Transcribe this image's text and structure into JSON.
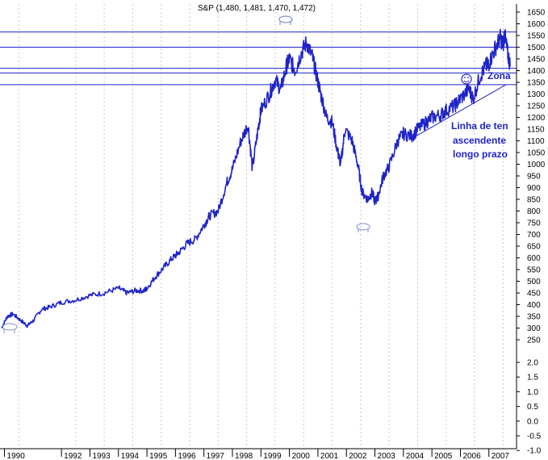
{
  "chart_data": {
    "type": "line",
    "title": "S&P (1,480, 1,481, 1,470, 1,472)",
    "y_ticks_upper": [
      "1650",
      "1600",
      "1550",
      "1500",
      "1450",
      "1400",
      "1350",
      "1300",
      "1250",
      "1200",
      "1150",
      "1100",
      "1050",
      "1000",
      "950",
      "900",
      "850",
      "800",
      "750",
      "700",
      "650",
      "600",
      "550",
      "500",
      "450",
      "400",
      "350",
      "300",
      "250"
    ],
    "y_ticks_lower": [
      "2.0",
      "1.5",
      "1.0",
      "0.5",
      "0.0",
      "-0.5",
      "-1.0"
    ],
    "x_ticks": [
      "1990",
      "1992",
      "1993",
      "1994",
      "1995",
      "1996",
      "1997",
      "1998",
      "1999",
      "2000",
      "2001",
      "2002",
      "2003",
      "2004",
      "2005",
      "2006",
      "2007"
    ],
    "x_tick_years": [
      1990,
      1992,
      1993,
      1994,
      1995,
      1996,
      1997,
      1998,
      1999,
      2000,
      2001,
      2002,
      2003,
      2004,
      2005,
      2006,
      2007
    ],
    "xlim": [
      1989.9,
      2007.8
    ],
    "ylim": [
      240,
      1660
    ],
    "series": [
      {
        "color": "#1f24c8",
        "x": [
          1989.9,
          1990.1,
          1990.3,
          1990.6,
          1990.8,
          1991.0,
          1991.3,
          1991.6,
          1992.0,
          1992.5,
          1993.0,
          1993.5,
          1994.0,
          1994.3,
          1994.6,
          1994.9,
          1995.0,
          1995.3,
          1995.6,
          1995.9,
          1996.1,
          1996.4,
          1996.7,
          1997.0,
          1997.2,
          1997.5,
          1997.8,
          1998.0,
          1998.3,
          1998.55,
          1998.7,
          1998.9,
          1999.0,
          1999.3,
          1999.5,
          1999.7,
          1999.9,
          2000.0,
          2000.2,
          2000.4,
          2000.6,
          2000.8,
          2000.95,
          2001.1,
          2001.3,
          2001.5,
          2001.7,
          2001.8,
          2001.95,
          2002.2,
          2002.4,
          2002.55,
          2002.75,
          2002.9,
          2003.0,
          2003.1,
          2003.3,
          2003.5,
          2003.8,
          2004.0,
          2004.3,
          2004.5,
          2004.8,
          2005.0,
          2005.3,
          2005.5,
          2005.8,
          2006.0,
          2006.3,
          2006.45,
          2006.7,
          2006.9,
          2007.0,
          2007.2,
          2007.4,
          2007.5,
          2007.55,
          2007.65,
          2007.75
        ],
        "y": [
          300,
          350,
          360,
          330,
          310,
          330,
          380,
          390,
          410,
          420,
          440,
          450,
          470,
          450,
          460,
          460,
          470,
          520,
          560,
          600,
          620,
          660,
          680,
          740,
          780,
          800,
          920,
          980,
          1100,
          1170,
          980,
          1150,
          1230,
          1300,
          1360,
          1320,
          1420,
          1450,
          1400,
          1470,
          1520,
          1460,
          1380,
          1300,
          1200,
          1180,
          1050,
          1000,
          1150,
          1100,
          1000,
          880,
          850,
          880,
          840,
          860,
          950,
          990,
          1100,
          1130,
          1120,
          1150,
          1180,
          1200,
          1210,
          1230,
          1250,
          1280,
          1320,
          1280,
          1380,
          1420,
          1430,
          1490,
          1540,
          1510,
          1560,
          1480,
          1420
        ]
      }
    ],
    "h_lines": [
      1565,
      1500,
      1410,
      1390,
      1340
    ],
    "trendline": {
      "x": [
        2004.3,
        2007.6
      ],
      "y": [
        1110,
        1340
      ]
    },
    "annotations": {
      "zona": "Zona",
      "trend_line1": "Linha de ten",
      "trend_line2": "ascendente",
      "trend_line3": "longo prazo"
    },
    "grid": "vertical dashed"
  }
}
